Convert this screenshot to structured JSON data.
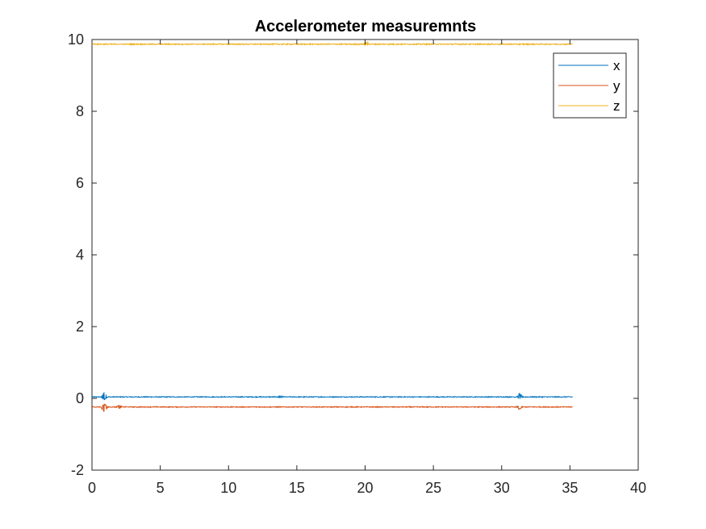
{
  "chart_data": {
    "type": "line",
    "title": "Accelerometer measuremnts",
    "xlabel": "",
    "ylabel": "",
    "xlim": [
      0,
      40
    ],
    "ylim": [
      -2,
      10
    ],
    "xticks": [
      "0",
      "5",
      "10",
      "15",
      "20",
      "25",
      "30",
      "35",
      "40"
    ],
    "yticks": [
      "-2",
      "0",
      "2",
      "4",
      "6",
      "8",
      "10"
    ],
    "grid": false,
    "legend_position": "top-right",
    "series": [
      {
        "name": "x",
        "color": "#0072BD",
        "x_start": 0,
        "x_end": 35.2,
        "mean": 0.04,
        "noise": 0.012,
        "spikes": [
          {
            "x": 0.9,
            "amp": 0.14
          },
          {
            "x": 13.8,
            "amp": 0.03
          },
          {
            "x": 31.3,
            "amp": 0.09
          }
        ]
      },
      {
        "name": "y",
        "color": "#D95319",
        "x_start": 0,
        "x_end": 35.2,
        "mean": -0.24,
        "noise": 0.012,
        "spikes": [
          {
            "x": 0.9,
            "amp": -0.14
          },
          {
            "x": 2.0,
            "amp": 0.05
          },
          {
            "x": 31.3,
            "amp": -0.06
          }
        ]
      },
      {
        "name": "z",
        "color": "#EDB120",
        "x_start": 0,
        "x_end": 35.2,
        "mean": 9.87,
        "noise": 0.015,
        "spikes": [
          {
            "x": 20.1,
            "amp": 0.05
          }
        ]
      }
    ]
  }
}
